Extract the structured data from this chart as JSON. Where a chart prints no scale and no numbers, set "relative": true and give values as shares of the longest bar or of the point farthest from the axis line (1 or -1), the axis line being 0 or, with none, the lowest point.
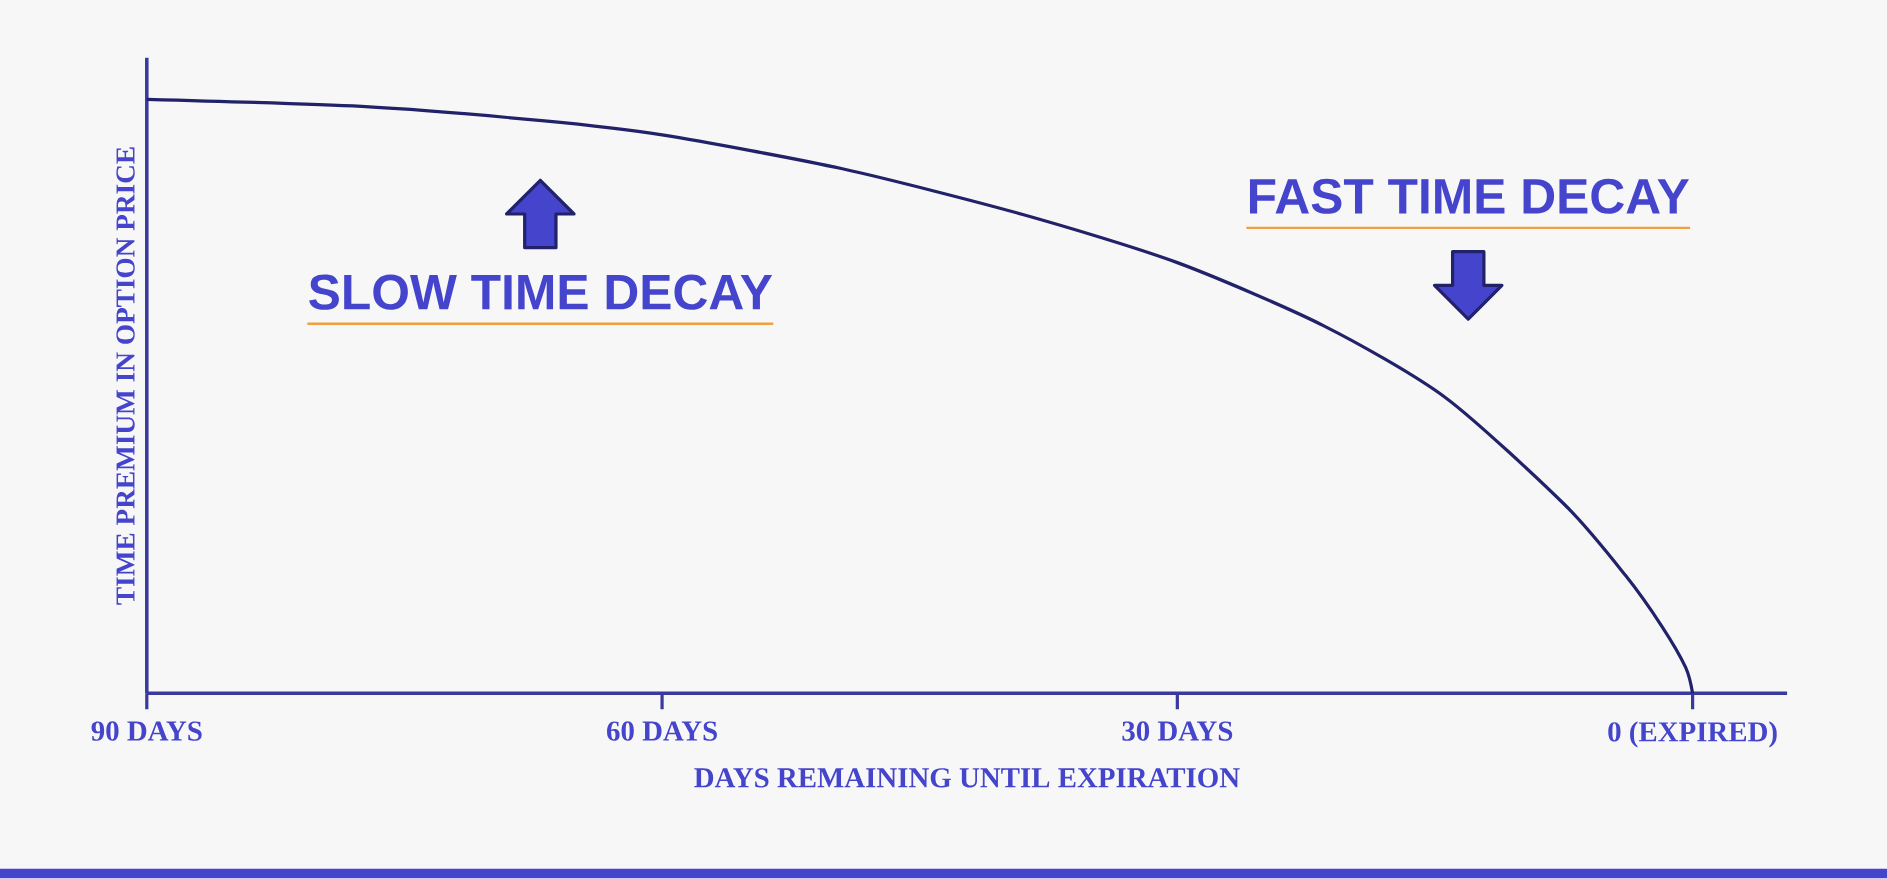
{
  "chart_data": {
    "type": "line",
    "xlabel": "DAYS REMAINING UNTIL EXPIRATION",
    "ylabel": "TIME PREMIUM IN OPTION PRICE",
    "x": [
      90,
      77.5,
      67,
      60,
      49.5,
      39,
      30,
      21.5,
      14.4,
      7.4,
      3.9,
      1.8,
      0.4,
      0
    ],
    "values": [
      1,
      0.988,
      0.964,
      0.94,
      0.883,
      0.806,
      0.725,
      0.619,
      0.498,
      0.316,
      0.198,
      0.113,
      0.043,
      0
    ],
    "relative": true,
    "color": "#22226a",
    "xlim": [
      90,
      -5.5
    ],
    "xticks": [
      {
        "value": 90,
        "label": "90 DAYS"
      },
      {
        "value": 60,
        "label": "60 DAYS"
      },
      {
        "value": 30,
        "label": "30 DAYS"
      },
      {
        "value": 0,
        "label": "0 (EXPIRED)"
      }
    ],
    "annotations": [
      "SLOW TIME DECAY",
      "FAST TIME DECAY"
    ]
  }
}
